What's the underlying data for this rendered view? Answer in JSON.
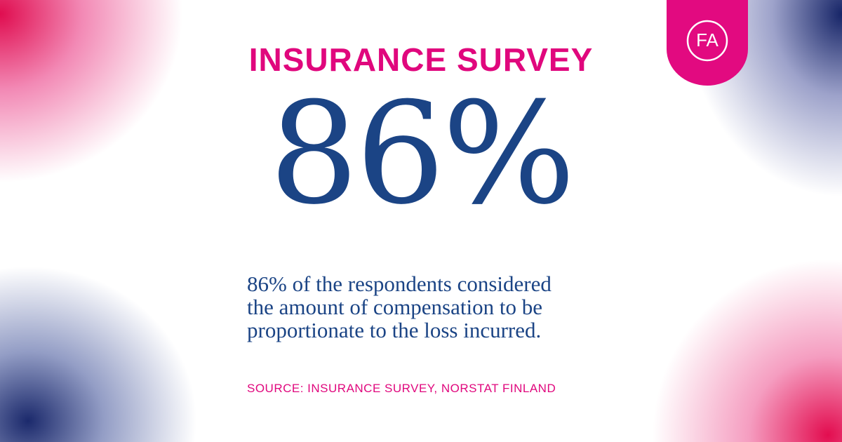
{
  "header": {
    "title": "INSURANCE SURVEY",
    "logo": "FA"
  },
  "stat": {
    "value": "86%"
  },
  "description": {
    "lines": [
      "86% of the respondents considered",
      "the amount of compensation to be",
      "proportionate to the loss incurred."
    ]
  },
  "footer": {
    "source": "SOURCE: INSURANCE SURVEY, NORSTAT FINLAND"
  }
}
